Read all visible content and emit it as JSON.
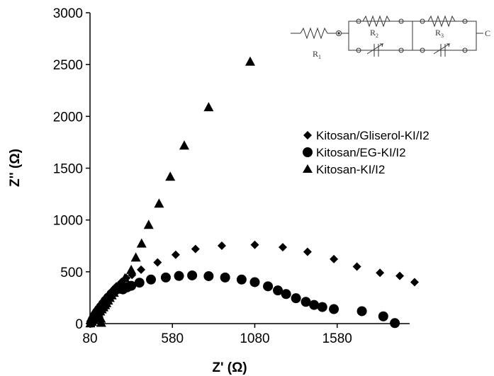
{
  "chart_data": {
    "type": "scatter",
    "title": "",
    "xlabel": "Z' (Ω)",
    "ylabel": "Z'' (Ω)",
    "xlim": [
      80,
      2020
    ],
    "ylim": [
      0,
      3000
    ],
    "xticks": [
      80,
      580,
      1080,
      1580
    ],
    "yticks": [
      0,
      500,
      1000,
      1500,
      2000,
      2500,
      3000
    ],
    "legend_position": "right",
    "grid": false,
    "series": [
      {
        "name": "Kitosan/Gliserol-KI/I2",
        "marker": "diamond",
        "color": "#000000",
        "points": [
          [
            85,
            5
          ],
          [
            92,
            25
          ],
          [
            100,
            50
          ],
          [
            108,
            75
          ],
          [
            118,
            100
          ],
          [
            128,
            125
          ],
          [
            138,
            150
          ],
          [
            150,
            178
          ],
          [
            162,
            205
          ],
          [
            176,
            235
          ],
          [
            190,
            265
          ],
          [
            205,
            295
          ],
          [
            222,
            328
          ],
          [
            240,
            360
          ],
          [
            270,
            400
          ],
          [
            300,
            440
          ],
          [
            335,
            470
          ],
          [
            390,
            520
          ],
          [
            490,
            590
          ],
          [
            600,
            665
          ],
          [
            720,
            720
          ],
          [
            880,
            752
          ],
          [
            1080,
            760
          ],
          [
            1250,
            737
          ],
          [
            1400,
            693
          ],
          [
            1560,
            623
          ],
          [
            1700,
            550
          ],
          [
            1840,
            490
          ],
          [
            1960,
            460
          ],
          [
            2050,
            400
          ]
        ]
      },
      {
        "name": "Kitosan/EG-KI/I2",
        "marker": "circle",
        "color": "#000000",
        "points": [
          [
            88,
            10
          ],
          [
            96,
            35
          ],
          [
            104,
            60
          ],
          [
            112,
            85
          ],
          [
            122,
            110
          ],
          [
            134,
            135
          ],
          [
            146,
            160
          ],
          [
            160,
            190
          ],
          [
            174,
            220
          ],
          [
            190,
            250
          ],
          [
            210,
            285
          ],
          [
            232,
            320
          ],
          [
            255,
            350
          ],
          [
            280,
            330
          ],
          [
            305,
            350
          ],
          [
            330,
            365
          ],
          [
            380,
            395
          ],
          [
            450,
            425
          ],
          [
            540,
            445
          ],
          [
            620,
            460
          ],
          [
            700,
            465
          ],
          [
            800,
            458
          ],
          [
            900,
            445
          ],
          [
            1000,
            425
          ],
          [
            1080,
            400
          ],
          [
            1160,
            360
          ],
          [
            1220,
            320
          ],
          [
            1270,
            285
          ],
          [
            1330,
            245
          ],
          [
            1390,
            210
          ],
          [
            1440,
            180
          ],
          [
            1490,
            160
          ],
          [
            1560,
            140
          ],
          [
            1730,
            120
          ],
          [
            1860,
            70
          ],
          [
            1930,
            5
          ]
        ]
      },
      {
        "name": "Kitosan-KI/I2",
        "marker": "triangle",
        "color": "#000000",
        "points": [
          [
            82,
            5
          ],
          [
            92,
            20
          ],
          [
            102,
            40
          ],
          [
            112,
            60
          ],
          [
            122,
            80
          ],
          [
            132,
            100
          ],
          [
            142,
            120
          ],
          [
            152,
            140
          ],
          [
            162,
            160
          ],
          [
            172,
            180
          ],
          [
            180,
            200
          ],
          [
            190,
            225
          ],
          [
            200,
            250
          ],
          [
            212,
            275
          ],
          [
            225,
            300
          ],
          [
            240,
            330
          ],
          [
            256,
            365
          ],
          [
            274,
            400
          ],
          [
            292,
            440
          ],
          [
            330,
            520
          ],
          [
            358,
            640
          ],
          [
            393,
            775
          ],
          [
            436,
            955
          ],
          [
            499,
            1160
          ],
          [
            567,
            1420
          ],
          [
            652,
            1720
          ],
          [
            800,
            2090
          ],
          [
            1052,
            2530
          ],
          [
            148,
            10
          ],
          [
            146,
            50
          ]
        ]
      }
    ],
    "inset": {
      "labels": [
        "R1",
        "R2",
        "R3"
      ],
      "terminal": "C"
    }
  }
}
